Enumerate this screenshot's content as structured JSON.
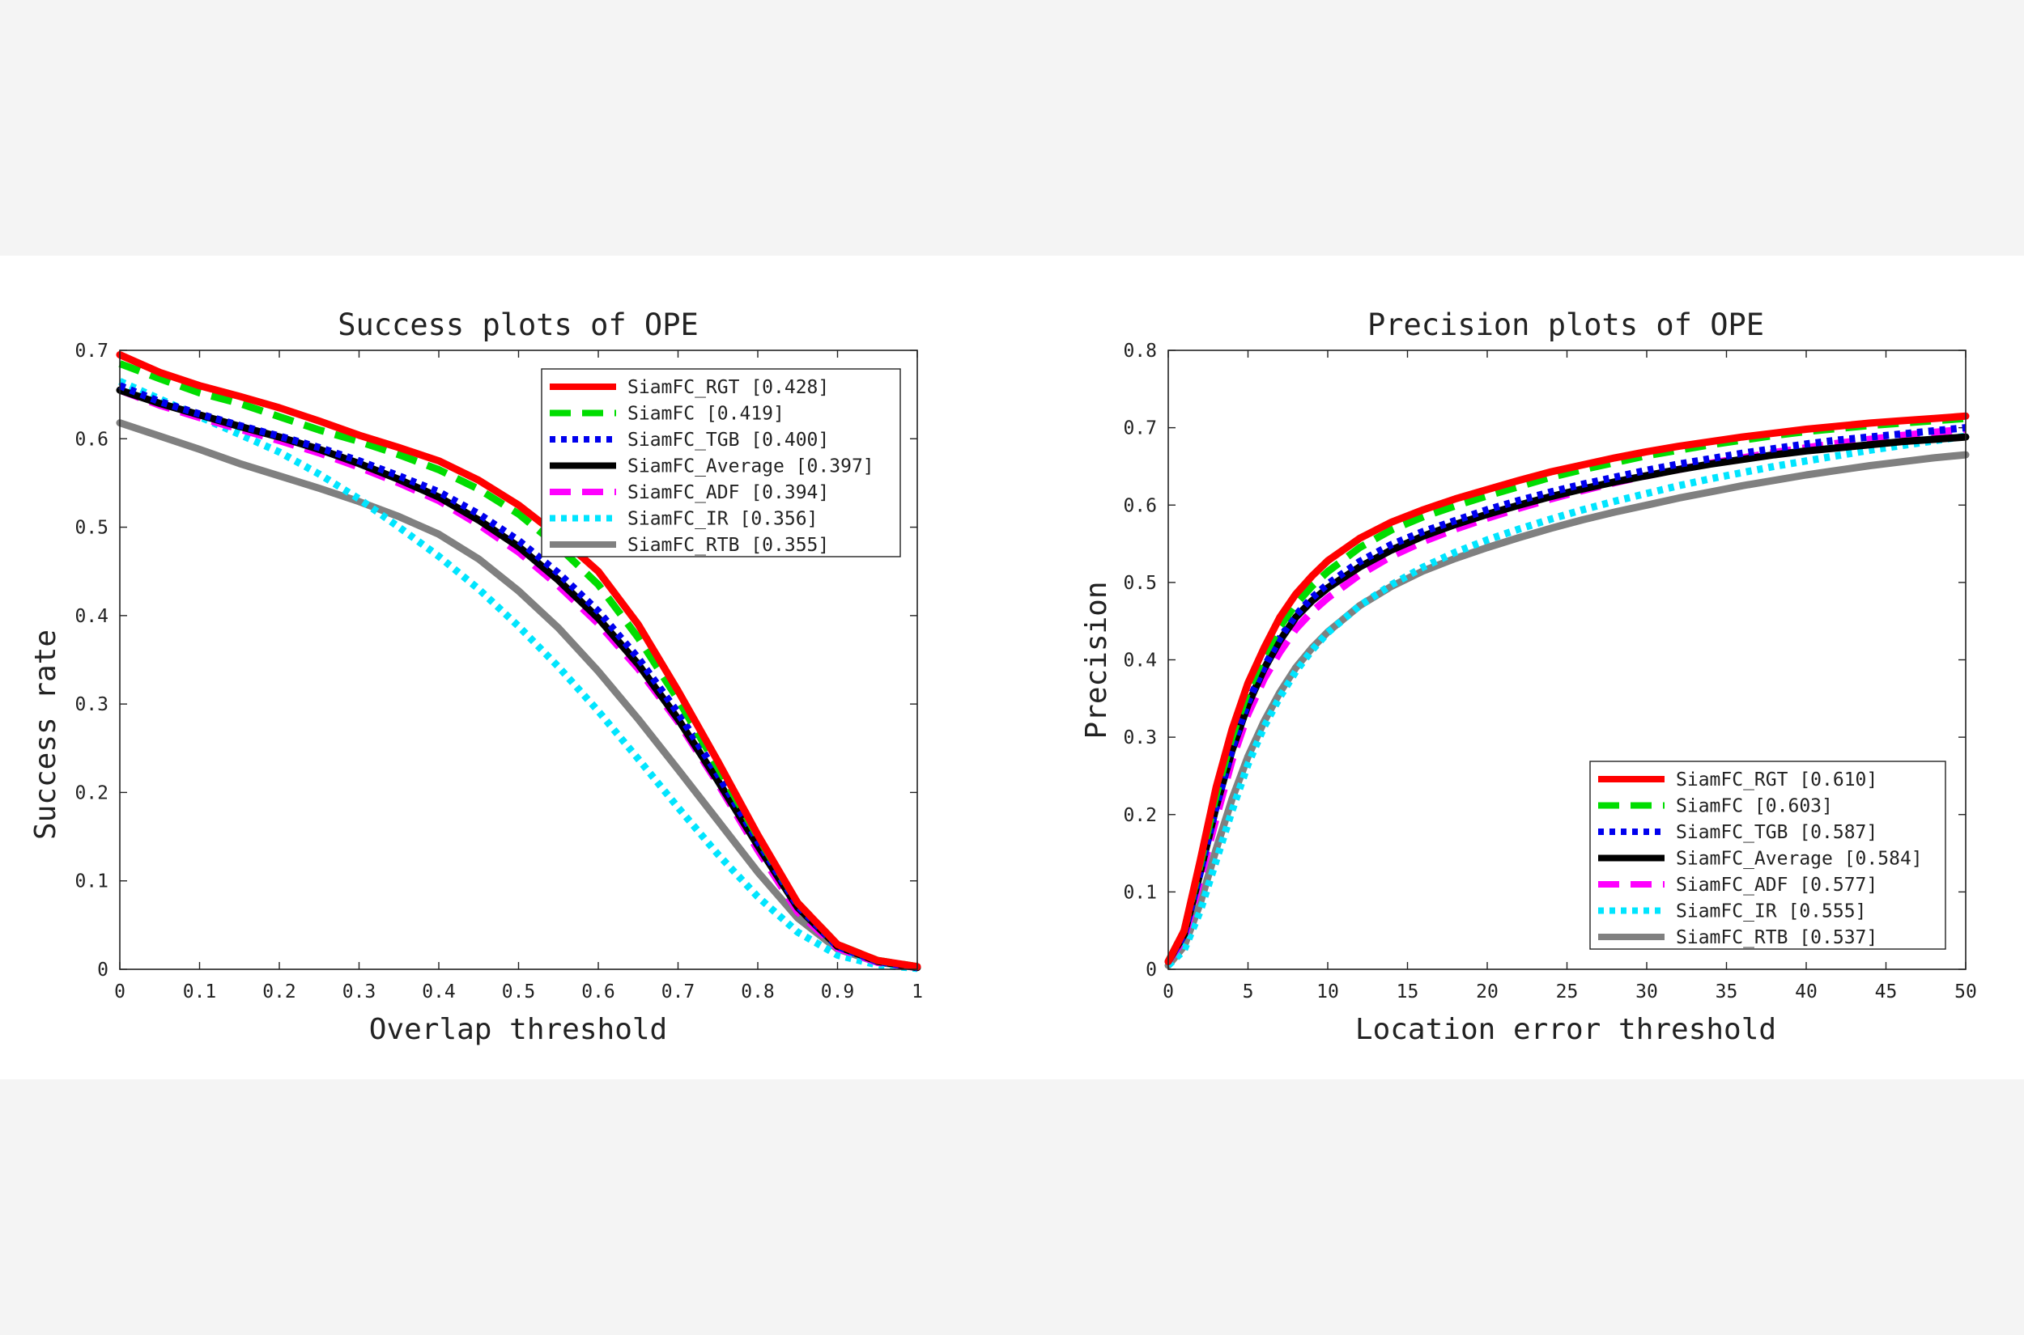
{
  "chart_data": [
    {
      "type": "line",
      "title": "Success plots of OPE",
      "xlabel": "Overlap threshold",
      "ylabel": "Success rate",
      "xlim": [
        0,
        1
      ],
      "ylim": [
        0,
        0.7
      ],
      "xticks": [
        "0",
        "0.1",
        "0.2",
        "0.3",
        "0.4",
        "0.5",
        "0.6",
        "0.7",
        "0.8",
        "0.9",
        "1"
      ],
      "yticks": [
        "0",
        "0.1",
        "0.2",
        "0.3",
        "0.4",
        "0.5",
        "0.6",
        "0.7"
      ],
      "legend_position": "top-right",
      "grid": false,
      "x": [
        0,
        0.05,
        0.1,
        0.15,
        0.2,
        0.25,
        0.3,
        0.35,
        0.4,
        0.45,
        0.5,
        0.55,
        0.6,
        0.65,
        0.7,
        0.75,
        0.8,
        0.85,
        0.9,
        0.95,
        1.0
      ],
      "series": [
        {
          "name": "SiamFC_RGT [0.428]",
          "color": "#ff0000",
          "dash": "solid",
          "values": [
            0.695,
            0.675,
            0.66,
            0.648,
            0.635,
            0.62,
            0.604,
            0.59,
            0.575,
            0.553,
            0.525,
            0.49,
            0.45,
            0.39,
            0.315,
            0.235,
            0.152,
            0.075,
            0.028,
            0.01,
            0.003
          ]
        },
        {
          "name": "SiamFC [0.419]",
          "color": "#00dd00",
          "dash": "dash",
          "values": [
            0.685,
            0.668,
            0.652,
            0.64,
            0.625,
            0.61,
            0.597,
            0.582,
            0.565,
            0.543,
            0.515,
            0.478,
            0.435,
            0.375,
            0.305,
            0.228,
            0.15,
            0.075,
            0.028,
            0.01,
            0.003
          ]
        },
        {
          "name": "SiamFC_TGB [0.400]",
          "color": "#0000ee",
          "dash": "dot",
          "values": [
            0.66,
            0.642,
            0.628,
            0.615,
            0.603,
            0.59,
            0.575,
            0.558,
            0.54,
            0.515,
            0.485,
            0.448,
            0.405,
            0.352,
            0.29,
            0.22,
            0.145,
            0.072,
            0.026,
            0.009,
            0.002
          ]
        },
        {
          "name": "SiamFC_Average [0.397]",
          "color": "#000000",
          "dash": "solid",
          "values": [
            0.655,
            0.64,
            0.627,
            0.614,
            0.602,
            0.588,
            0.572,
            0.554,
            0.534,
            0.508,
            0.478,
            0.44,
            0.397,
            0.345,
            0.283,
            0.213,
            0.14,
            0.07,
            0.026,
            0.009,
            0.002
          ]
        },
        {
          "name": "SiamFC_ADF [0.394]",
          "color": "#ff00ff",
          "dash": "dash",
          "values": [
            0.655,
            0.638,
            0.624,
            0.611,
            0.598,
            0.584,
            0.568,
            0.55,
            0.53,
            0.503,
            0.472,
            0.434,
            0.391,
            0.34,
            0.28,
            0.21,
            0.135,
            0.065,
            0.024,
            0.008,
            0.002
          ]
        },
        {
          "name": "SiamFC_IR [0.356]",
          "color": "#00e5ff",
          "dash": "dot",
          "values": [
            0.665,
            0.645,
            0.625,
            0.605,
            0.585,
            0.56,
            0.532,
            0.5,
            0.467,
            0.43,
            0.388,
            0.342,
            0.292,
            0.238,
            0.183,
            0.13,
            0.082,
            0.042,
            0.016,
            0.005,
            0.001
          ]
        },
        {
          "name": "SiamFC_RTB [0.355]",
          "color": "#808080",
          "dash": "solid",
          "values": [
            0.618,
            0.603,
            0.588,
            0.572,
            0.558,
            0.544,
            0.529,
            0.512,
            0.492,
            0.464,
            0.428,
            0.386,
            0.337,
            0.283,
            0.226,
            0.168,
            0.11,
            0.058,
            0.023,
            0.008,
            0.002
          ]
        }
      ]
    },
    {
      "type": "line",
      "title": "Precision plots of OPE",
      "xlabel": "Location error threshold",
      "ylabel": "Precision",
      "xlim": [
        0,
        50
      ],
      "ylim": [
        0,
        0.8
      ],
      "xticks": [
        "0",
        "5",
        "10",
        "15",
        "20",
        "25",
        "30",
        "35",
        "40",
        "45",
        "50"
      ],
      "yticks": [
        "0",
        "0.1",
        "0.2",
        "0.3",
        "0.4",
        "0.5",
        "0.6",
        "0.7",
        "0.8"
      ],
      "legend_position": "bottom-right",
      "grid": false,
      "x": [
        0,
        1,
        2,
        3,
        4,
        5,
        6,
        7,
        8,
        9,
        10,
        12,
        14,
        16,
        18,
        20,
        22,
        24,
        26,
        28,
        30,
        32,
        34,
        36,
        38,
        40,
        42,
        44,
        46,
        48,
        50
      ],
      "series": [
        {
          "name": "SiamFC_RGT [0.610]",
          "color": "#ff0000",
          "dash": "solid",
          "values": [
            0.01,
            0.05,
            0.14,
            0.235,
            0.31,
            0.37,
            0.415,
            0.455,
            0.485,
            0.508,
            0.528,
            0.557,
            0.578,
            0.594,
            0.608,
            0.62,
            0.632,
            0.643,
            0.652,
            0.661,
            0.669,
            0.676,
            0.682,
            0.688,
            0.693,
            0.698,
            0.702,
            0.706,
            0.709,
            0.712,
            0.715
          ]
        },
        {
          "name": "SiamFC [0.603]",
          "color": "#00dd00",
          "dash": "dash",
          "values": [
            0.01,
            0.05,
            0.135,
            0.225,
            0.3,
            0.36,
            0.405,
            0.443,
            0.472,
            0.495,
            0.514,
            0.545,
            0.568,
            0.585,
            0.599,
            0.612,
            0.624,
            0.636,
            0.646,
            0.655,
            0.664,
            0.671,
            0.678,
            0.684,
            0.69,
            0.695,
            0.699,
            0.703,
            0.706,
            0.709,
            0.712
          ]
        },
        {
          "name": "SiamFC_TGB [0.587]",
          "color": "#0000ee",
          "dash": "dot",
          "values": [
            0.01,
            0.045,
            0.125,
            0.21,
            0.285,
            0.345,
            0.39,
            0.428,
            0.458,
            0.48,
            0.498,
            0.527,
            0.549,
            0.566,
            0.58,
            0.594,
            0.606,
            0.617,
            0.627,
            0.636,
            0.645,
            0.653,
            0.66,
            0.667,
            0.673,
            0.679,
            0.684,
            0.688,
            0.692,
            0.696,
            0.7
          ]
        },
        {
          "name": "SiamFC_Average [0.584]",
          "color": "#000000",
          "dash": "solid",
          "values": [
            0.01,
            0.045,
            0.125,
            0.21,
            0.283,
            0.342,
            0.388,
            0.425,
            0.455,
            0.476,
            0.493,
            0.52,
            0.542,
            0.56,
            0.575,
            0.588,
            0.6,
            0.611,
            0.621,
            0.63,
            0.638,
            0.646,
            0.653,
            0.659,
            0.665,
            0.67,
            0.674,
            0.678,
            0.682,
            0.685,
            0.688
          ]
        },
        {
          "name": "SiamFC_ADF [0.577]",
          "color": "#ff00ff",
          "dash": "dash",
          "values": [
            0.01,
            0.04,
            0.115,
            0.195,
            0.27,
            0.33,
            0.375,
            0.41,
            0.44,
            0.462,
            0.48,
            0.51,
            0.534,
            0.553,
            0.569,
            0.583,
            0.596,
            0.608,
            0.619,
            0.629,
            0.638,
            0.646,
            0.654,
            0.661,
            0.668,
            0.674,
            0.68,
            0.685,
            0.69,
            0.694,
            0.698
          ]
        },
        {
          "name": "SiamFC_IR [0.555]",
          "color": "#00e5ff",
          "dash": "dot",
          "values": [
            0.005,
            0.025,
            0.075,
            0.14,
            0.205,
            0.265,
            0.313,
            0.352,
            0.385,
            0.412,
            0.435,
            0.47,
            0.497,
            0.52,
            0.539,
            0.555,
            0.569,
            0.582,
            0.594,
            0.605,
            0.615,
            0.625,
            0.634,
            0.642,
            0.65,
            0.657,
            0.664,
            0.671,
            0.677,
            0.683,
            0.689
          ]
        },
        {
          "name": "SiamFC_RTB [0.537]",
          "color": "#808080",
          "dash": "solid",
          "values": [
            0.005,
            0.03,
            0.085,
            0.155,
            0.22,
            0.275,
            0.32,
            0.358,
            0.39,
            0.415,
            0.436,
            0.47,
            0.495,
            0.515,
            0.531,
            0.545,
            0.558,
            0.57,
            0.581,
            0.591,
            0.6,
            0.609,
            0.617,
            0.625,
            0.632,
            0.639,
            0.645,
            0.651,
            0.656,
            0.661,
            0.665
          ]
        }
      ]
    }
  ]
}
